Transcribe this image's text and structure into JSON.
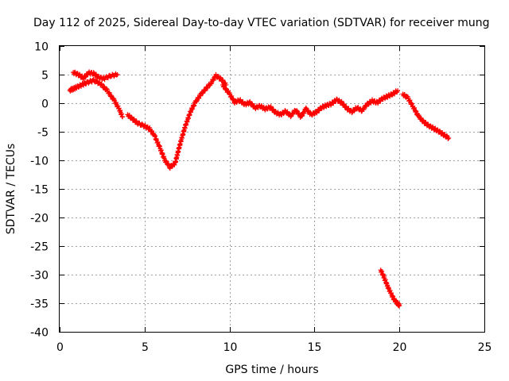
{
  "chart_data": {
    "type": "scatter",
    "title": "Day 112 of 2025, Sidereal Day-to-day VTEC variation (SDTVAR) for receiver mung",
    "xlabel": "GPS time / hours",
    "ylabel": "SDTVAR / TECUs",
    "xlim": [
      0,
      25
    ],
    "ylim": [
      -40,
      10
    ],
    "xticks": [
      0,
      5,
      10,
      15,
      20,
      25
    ],
    "yticks": [
      10,
      5,
      0,
      -5,
      -10,
      -15,
      -20,
      -25,
      -30,
      -35,
      -40
    ],
    "grid": true,
    "marker": "+",
    "series": [
      {
        "name": "SDTVAR",
        "color": "#ff0000",
        "tracks": [
          [
            [
              0.6,
              2.3
            ],
            [
              0.8,
              2.5
            ],
            [
              1.0,
              2.8
            ],
            [
              1.3,
              3.2
            ],
            [
              1.6,
              3.6
            ],
            [
              2.0,
              4.0
            ],
            [
              2.4,
              3.4
            ],
            [
              2.8,
              2.2
            ],
            [
              3.2,
              0.5
            ],
            [
              3.5,
              -1.0
            ],
            [
              3.7,
              -2.4
            ]
          ],
          [
            [
              0.8,
              5.4
            ],
            [
              1.1,
              5.0
            ],
            [
              1.4,
              4.4
            ],
            [
              1.7,
              5.3
            ],
            [
              2.0,
              5.2
            ],
            [
              2.3,
              4.5
            ],
            [
              2.6,
              4.3
            ],
            [
              3.0,
              4.8
            ],
            [
              3.4,
              5.0
            ]
          ],
          [
            [
              4.0,
              -2.0
            ],
            [
              4.3,
              -2.8
            ],
            [
              4.6,
              -3.5
            ],
            [
              5.0,
              -4.0
            ],
            [
              5.3,
              -4.5
            ],
            [
              5.6,
              -5.8
            ],
            [
              5.9,
              -7.8
            ],
            [
              6.2,
              -10.0
            ],
            [
              6.5,
              -11.2
            ],
            [
              6.8,
              -10.5
            ],
            [
              7.1,
              -7.0
            ],
            [
              7.4,
              -4.0
            ],
            [
              7.7,
              -1.5
            ],
            [
              8.0,
              0.2
            ],
            [
              8.3,
              1.5
            ],
            [
              8.6,
              2.5
            ],
            [
              8.9,
              3.5
            ],
            [
              9.2,
              4.8
            ],
            [
              9.5,
              4.2
            ],
            [
              9.8,
              3.2
            ]
          ],
          [
            [
              9.6,
              3.2
            ],
            [
              10.0,
              1.6
            ],
            [
              10.3,
              0.2
            ],
            [
              10.6,
              0.5
            ],
            [
              10.9,
              -0.2
            ],
            [
              11.2,
              0.1
            ],
            [
              11.5,
              -0.8
            ],
            [
              11.8,
              -0.5
            ],
            [
              12.1,
              -1.0
            ],
            [
              12.4,
              -0.7
            ],
            [
              12.7,
              -1.6
            ],
            [
              13.0,
              -2.0
            ],
            [
              13.3,
              -1.4
            ],
            [
              13.6,
              -2.2
            ],
            [
              13.9,
              -1.2
            ],
            [
              14.2,
              -2.4
            ],
            [
              14.5,
              -1.0
            ],
            [
              14.8,
              -2.0
            ],
            [
              15.1,
              -1.6
            ],
            [
              15.4,
              -0.8
            ],
            [
              15.7,
              -0.4
            ],
            [
              16.0,
              -0.1
            ],
            [
              16.3,
              0.6
            ],
            [
              16.6,
              0.1
            ],
            [
              16.9,
              -0.9
            ],
            [
              17.2,
              -1.5
            ],
            [
              17.5,
              -0.8
            ],
            [
              17.8,
              -1.3
            ],
            [
              18.1,
              -0.2
            ],
            [
              18.4,
              0.4
            ],
            [
              18.7,
              0.1
            ],
            [
              19.0,
              0.8
            ],
            [
              19.3,
              1.2
            ],
            [
              19.6,
              1.6
            ],
            [
              19.9,
              2.2
            ]
          ],
          [
            [
              20.2,
              1.6
            ],
            [
              20.5,
              0.9
            ],
            [
              20.8,
              -0.6
            ],
            [
              21.1,
              -2.2
            ],
            [
              21.4,
              -3.2
            ],
            [
              21.7,
              -3.9
            ],
            [
              22.0,
              -4.4
            ],
            [
              22.3,
              -4.9
            ],
            [
              22.6,
              -5.5
            ],
            [
              22.9,
              -6.1
            ]
          ],
          [
            [
              18.9,
              -29.2
            ],
            [
              19.1,
              -30.5
            ],
            [
              19.3,
              -32.0
            ],
            [
              19.5,
              -33.3
            ],
            [
              19.7,
              -34.4
            ],
            [
              19.9,
              -35.1
            ],
            [
              20.0,
              -35.4
            ]
          ]
        ]
      }
    ]
  }
}
